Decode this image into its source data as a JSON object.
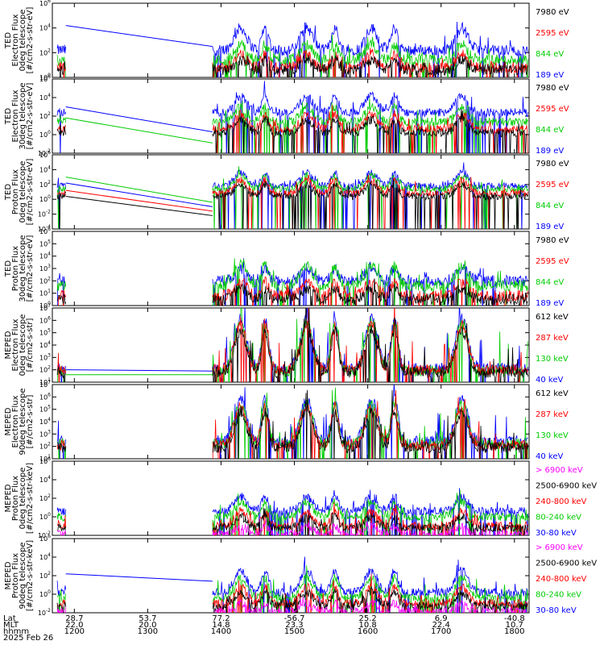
{
  "chart_data": [
    {
      "type": "line",
      "ylabel_lines": [
        "TED",
        "Electron Flux",
        "0deg telescope",
        "[#/cm2-s-str-eV]"
      ],
      "ylog": true,
      "ylim_exp": [
        0,
        6
      ],
      "ytick_labels": [
        "10^0",
        "10^2",
        "10^4",
        "10^6"
      ],
      "series": [
        {
          "label": "7980 eV",
          "color": "#000000",
          "bg": 0.6,
          "peak": 1.4
        },
        {
          "label": "2595 eV",
          "color": "#ff0000",
          "bg": 0.8,
          "peak": 1.8
        },
        {
          "label": "844 eV",
          "color": "#00cc00",
          "bg": 1.4,
          "peak": 2.6
        },
        {
          "label": "189 eV",
          "color": "#0000ff",
          "bg": 2.2,
          "peak": 4.0
        }
      ],
      "gap_lines": [
        {
          "color": "#0000ff",
          "from": 4.2,
          "to": 2.5
        }
      ]
    },
    {
      "type": "line",
      "ylabel_lines": [
        "TED",
        "Electron Flux",
        "30deg telescope",
        "[#/cm2-s-str-eV]"
      ],
      "ylog": true,
      "ylim_exp": [
        -2,
        6
      ],
      "ytick_labels": [
        "10^-2",
        "10^0",
        "10^2",
        "10^4",
        "10^6"
      ],
      "series": [
        {
          "label": "7980 eV",
          "color": "#000000",
          "bg": 0.2,
          "peak": 1.6
        },
        {
          "label": "2595 eV",
          "color": "#ff0000",
          "bg": 0.6,
          "peak": 2.2
        },
        {
          "label": "844 eV",
          "color": "#00cc00",
          "bg": 1.4,
          "peak": 3.0
        },
        {
          "label": "189 eV",
          "color": "#0000ff",
          "bg": 2.4,
          "peak": 4.2
        }
      ],
      "gap_lines": [
        {
          "color": "#0000ff",
          "from": 3.0,
          "to": 0.3
        },
        {
          "color": "#00cc00",
          "from": 1.8,
          "to": -0.9
        }
      ]
    },
    {
      "type": "line",
      "ylabel_lines": [
        "TED",
        "Proton Flux",
        "0deg telescope",
        "[#/cm2-s-str-eV]"
      ],
      "ylog": true,
      "ylim_exp": [
        -4,
        6
      ],
      "ytick_labels": [
        "10^-4",
        "10^-2",
        "10^0",
        "10^2",
        "10^4",
        "10^6"
      ],
      "series": [
        {
          "label": "7980 eV",
          "color": "#000000",
          "bg": 0.4,
          "peak": 2.0
        },
        {
          "label": "2595 eV",
          "color": "#ff0000",
          "bg": 0.8,
          "peak": 2.6
        },
        {
          "label": "844 eV",
          "color": "#00cc00",
          "bg": 1.4,
          "peak": 3.2
        },
        {
          "label": "189 eV",
          "color": "#0000ff",
          "bg": 1.8,
          "peak": 3.6
        }
      ],
      "gap_lines": [
        {
          "color": "#00cc00",
          "from": 3.0,
          "to": -0.4
        },
        {
          "color": "#0000ff",
          "from": 2.2,
          "to": -1.0
        },
        {
          "color": "#ff0000",
          "from": 1.2,
          "to": -1.6
        },
        {
          "color": "#000000",
          "from": 0.4,
          "to": -2.2
        }
      ]
    },
    {
      "type": "line",
      "ylabel_lines": [
        "TED",
        "Proton Flux",
        "30deg telescope",
        "[#/cm2-s-str-eV]"
      ],
      "ylog": true,
      "ylim_exp": [
        0,
        6
      ],
      "ytick_labels": [
        "10^0",
        "10^1",
        "10^2",
        "10^3",
        "10^4",
        "10^5",
        "10^6"
      ],
      "series": [
        {
          "label": "7980 eV",
          "color": "#000000",
          "bg": 0.5,
          "peak": 1.4
        },
        {
          "label": "2595 eV",
          "color": "#ff0000",
          "bg": 0.8,
          "peak": 1.9
        },
        {
          "label": "844 eV",
          "color": "#00cc00",
          "bg": 1.6,
          "peak": 3.3
        },
        {
          "label": "189 eV",
          "color": "#0000ff",
          "bg": 2.0,
          "peak": 3.0
        }
      ],
      "gap_lines": []
    },
    {
      "type": "line",
      "ylabel_lines": [
        "MEPED",
        "Electron Flux",
        "0deg telescope",
        "[#/cm2-s-str]"
      ],
      "ylog": true,
      "ylim_exp": [
        1,
        7
      ],
      "ytick_labels": [
        "10^1",
        "10^2",
        "10^3",
        "10^4",
        "10^5",
        "10^6",
        "10^7"
      ],
      "series": [
        {
          "label": "612 keV",
          "color": "#000000",
          "bg": 1.8,
          "peak": 5.2
        },
        {
          "label": "287 keV",
          "color": "#ff0000",
          "bg": 2.0,
          "peak": 5.6
        },
        {
          "label": "130 keV",
          "color": "#00cc00",
          "bg": 1.9,
          "peak": 5.9
        },
        {
          "label": "40 keV",
          "color": "#0000ff",
          "bg": 2.1,
          "peak": 6.1
        }
      ],
      "gap_lines": [
        {
          "color": "#0000ff",
          "from": 2.0,
          "to": 1.9
        },
        {
          "color": "#00cc00",
          "from": 1.6,
          "to": 1.6
        }
      ]
    },
    {
      "type": "line",
      "ylabel_lines": [
        "MEPED",
        "Electron Flux",
        "90deg telescope",
        "[#/cm2-s-str]"
      ],
      "ylog": true,
      "ylim_exp": [
        1,
        7
      ],
      "ytick_labels": [
        "10^1",
        "10^2",
        "10^3",
        "10^4",
        "10^5",
        "10^6",
        "10^7"
      ],
      "series": [
        {
          "label": "612 keV",
          "color": "#000000",
          "bg": 1.9,
          "peak": 4.8
        },
        {
          "label": "287 keV",
          "color": "#ff0000",
          "bg": 2.1,
          "peak": 5.2
        },
        {
          "label": "130 keV",
          "color": "#00cc00",
          "bg": 2.2,
          "peak": 5.5
        },
        {
          "label": "40 keV",
          "color": "#0000ff",
          "bg": 2.4,
          "peak": 5.8
        }
      ],
      "gap_lines": []
    },
    {
      "type": "line",
      "ylabel_lines": [
        "MEPED",
        "Proton Flux",
        "0deg telescope",
        "[#/cm2-s-str-keV]"
      ],
      "ylog": true,
      "ylim_exp": [
        -2,
        6
      ],
      "ytick_labels": [
        "10^-2",
        "10^0",
        "10^2",
        "10^4",
        "10^6"
      ],
      "series": [
        {
          "label": "> 6900 keV",
          "color": "#ff00ff",
          "bg": -1.9,
          "peak": -1.0
        },
        {
          "label": "2500-6900 keV",
          "color": "#000000",
          "bg": -1.2,
          "peak": 0.0
        },
        {
          "label": "240-800 keV",
          "color": "#ff0000",
          "bg": -1.0,
          "peak": 0.6
        },
        {
          "label": "80-240 keV",
          "color": "#00cc00",
          "bg": 0.0,
          "peak": 1.6
        },
        {
          "label": "30-80 keV",
          "color": "#0000ff",
          "bg": 0.6,
          "peak": 2.2
        }
      ],
      "gap_lines": []
    },
    {
      "type": "line",
      "ylabel_lines": [
        "MEPED",
        "Proton Flux",
        "90deg telescope",
        "[#/cm2-s-str-keV]"
      ],
      "ylog": true,
      "ylim_exp": [
        -2,
        6
      ],
      "ytick_labels": [
        "10^-2",
        "10^0",
        "10^2",
        "10^4",
        "10^6"
      ],
      "series": [
        {
          "label": "> 6900 keV",
          "color": "#ff00ff",
          "bg": -1.9,
          "peak": -1.0
        },
        {
          "label": "2500-6900 keV",
          "color": "#000000",
          "bg": -1.3,
          "peak": 0.2
        },
        {
          "label": "240-800 keV",
          "color": "#ff0000",
          "bg": -1.0,
          "peak": 0.8
        },
        {
          "label": "80-240 keV",
          "color": "#00cc00",
          "bg": -0.4,
          "peak": 1.8
        },
        {
          "label": "30-80 keV",
          "color": "#0000ff",
          "bg": 0.2,
          "peak": 2.6
        }
      ],
      "gap_lines": [
        {
          "color": "#0000ff",
          "from": 2.2,
          "to": 1.4
        }
      ]
    }
  ],
  "xaxis": {
    "row_labels": [
      "Lat",
      "MLT",
      "hhmm",
      "2025 Feb 26"
    ],
    "xlim_hhmm": [
      "1142",
      "1812"
    ],
    "gap_hhmm": [
      "1153",
      "1353"
    ],
    "ticks": [
      {
        "t": "1200",
        "lat": "28.7",
        "mlt": "22.0",
        "hhmm": "1200"
      },
      {
        "t": "1300",
        "lat": "53.7",
        "mlt": "20.0",
        "hhmm": "1300"
      },
      {
        "t": "1400",
        "lat": "77.2",
        "mlt": "14.8",
        "hhmm": "1400"
      },
      {
        "t": "1500",
        "lat": "-56.7",
        "mlt": "23.3",
        "hhmm": "1500"
      },
      {
        "t": "1600",
        "lat": "25.2",
        "mlt": "10.8",
        "hhmm": "1600"
      },
      {
        "t": "1700",
        "lat": "6.9",
        "mlt": "22.4",
        "hhmm": "1700"
      },
      {
        "t": "1800",
        "lat": "-40.8",
        "mlt": "10.7",
        "hhmm": "1800"
      }
    ],
    "bursts_hhmm": [
      "1416",
      "1436",
      "1510",
      "1533",
      "1603",
      "1622",
      "1717"
    ]
  }
}
